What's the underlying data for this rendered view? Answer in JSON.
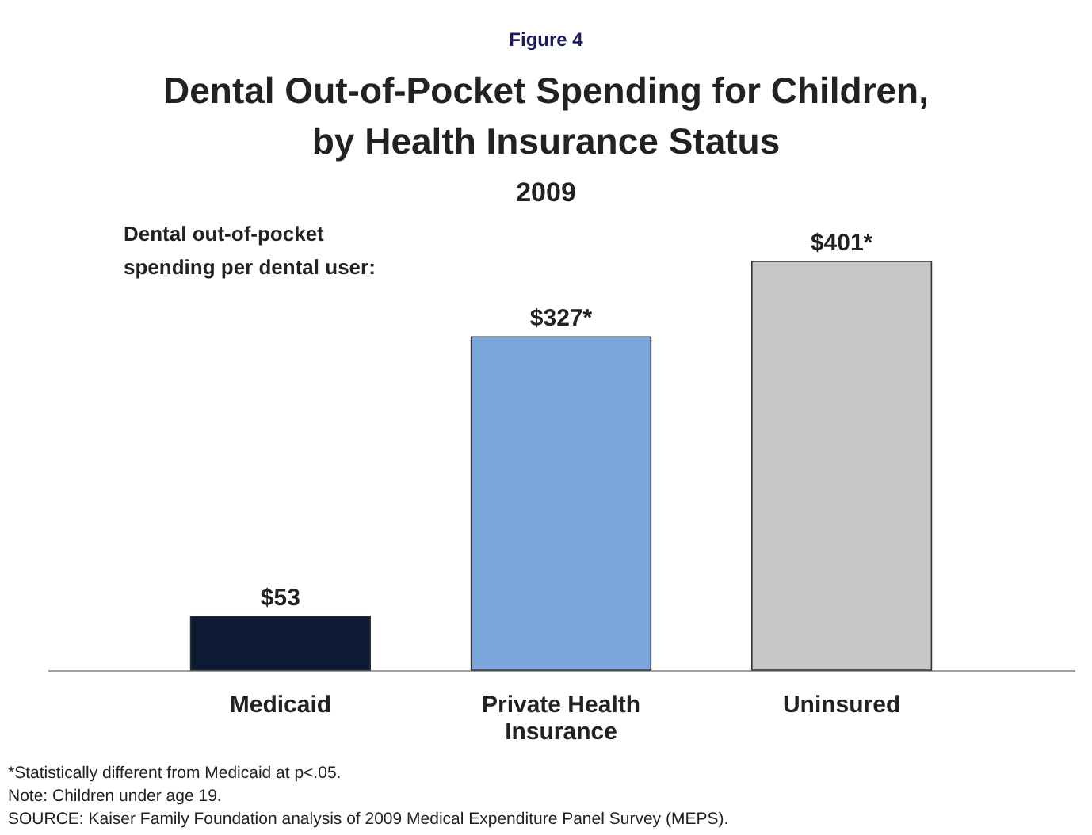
{
  "chart_data": {
    "type": "bar",
    "title": "Dental Out-of-Pocket Spending for Children, by Health Insurance Status",
    "subtitle": "2009",
    "ylabel": "Dental out-of-pocket spending per dental user:",
    "categories": [
      "Medicaid",
      "Private Health Insurance",
      "Uninsured"
    ],
    "values": [
      53,
      327,
      401
    ],
    "colors": [
      "#0d1a33",
      "#7aa6db",
      "#c6c7c8"
    ],
    "value_labels": [
      "$53",
      "$327*",
      "$401*"
    ],
    "annotations": [
      "Figure 4",
      "*Statistically different from Medicaid at p<.05.",
      "Note: Children under age 19.",
      "SOURCE: Kaiser Family Foundation analysis of 2009 Medical Expenditure Panel Survey (MEPS)."
    ]
  }
}
